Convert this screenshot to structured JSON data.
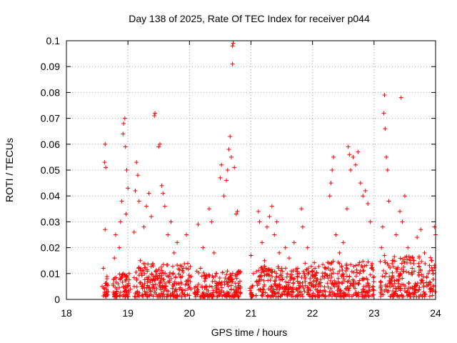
{
  "chart_data": {
    "type": "scatter",
    "title": "Day 138 of 2025, Rate Of TEC Index for receiver p044",
    "xlabel": "GPS time / hours",
    "ylabel": "ROTI / TECUs",
    "xlim": [
      18,
      24
    ],
    "ylim": [
      0,
      0.1
    ],
    "xticks": [
      18,
      19,
      20,
      21,
      22,
      23,
      24
    ],
    "yticks": [
      0,
      0.01,
      0.02,
      0.03,
      0.04,
      0.05,
      0.06,
      0.07,
      0.08,
      0.09,
      0.1
    ],
    "grid": true,
    "marker": "+",
    "color": "#ff0000",
    "series": [
      {
        "name": "ROTI",
        "points": [
          [
            18.58,
            0.005
          ],
          [
            18.6,
            0.012
          ],
          [
            18.62,
            0.053
          ],
          [
            18.63,
            0.06
          ],
          [
            18.64,
            0.051
          ],
          [
            18.63,
            0.027
          ],
          [
            18.65,
            0.004
          ],
          [
            18.66,
            0.008
          ],
          [
            18.68,
            0.003
          ],
          [
            18.78,
            0.016
          ],
          [
            18.8,
            0.025
          ],
          [
            18.82,
            0.003
          ],
          [
            18.84,
            0.006
          ],
          [
            18.86,
            0.02
          ],
          [
            18.88,
            0.03
          ],
          [
            18.9,
            0.038
          ],
          [
            18.92,
            0.064
          ],
          [
            18.93,
            0.068
          ],
          [
            18.95,
            0.07
          ],
          [
            18.96,
            0.059
          ],
          [
            18.97,
            0.033
          ],
          [
            18.98,
            0.05
          ],
          [
            19.0,
            0.043
          ],
          [
            19.02,
            0.01
          ],
          [
            19.04,
            0.004
          ],
          [
            19.0,
            0.002
          ],
          [
            19.1,
            0.026
          ],
          [
            19.12,
            0.042
          ],
          [
            19.14,
            0.053
          ],
          [
            19.16,
            0.048
          ],
          [
            19.18,
            0.038
          ],
          [
            19.2,
            0.015
          ],
          [
            19.22,
            0.01
          ],
          [
            19.24,
            0.005
          ],
          [
            19.26,
            0.028
          ],
          [
            19.3,
            0.036
          ],
          [
            19.34,
            0.041
          ],
          [
            19.38,
            0.032
          ],
          [
            19.41,
            0.013
          ],
          [
            19.43,
            0.071
          ],
          [
            19.44,
            0.072
          ],
          [
            19.5,
            0.059
          ],
          [
            19.52,
            0.06
          ],
          [
            19.55,
            0.044
          ],
          [
            19.57,
            0.041
          ],
          [
            19.6,
            0.036
          ],
          [
            19.65,
            0.025
          ],
          [
            19.7,
            0.03
          ],
          [
            19.75,
            0.018
          ],
          [
            19.8,
            0.022
          ],
          [
            19.85,
            0.009
          ],
          [
            19.9,
            0.012
          ],
          [
            19.95,
            0.025
          ],
          [
            19.98,
            0.006
          ],
          [
            20.1,
            0.005
          ],
          [
            20.14,
            0.029
          ],
          [
            20.18,
            0.012
          ],
          [
            20.22,
            0.02
          ],
          [
            20.26,
            0.008
          ],
          [
            20.32,
            0.035
          ],
          [
            20.36,
            0.03
          ],
          [
            20.4,
            0.018
          ],
          [
            20.44,
            0.01
          ],
          [
            20.5,
            0.047
          ],
          [
            20.52,
            0.052
          ],
          [
            20.56,
            0.04
          ],
          [
            20.6,
            0.046
          ],
          [
            20.62,
            0.05
          ],
          [
            20.64,
            0.058
          ],
          [
            20.66,
            0.063
          ],
          [
            20.68,
            0.055
          ],
          [
            20.7,
            0.091
          ],
          [
            20.7,
            0.098
          ],
          [
            20.71,
            0.099
          ],
          [
            20.73,
            0.051
          ],
          [
            20.76,
            0.033
          ],
          [
            20.78,
            0.034
          ],
          [
            20.8,
            0.004
          ],
          [
            20.82,
            0.007
          ],
          [
            21.0,
            0.017
          ],
          [
            21.02,
            0.005
          ],
          [
            21.04,
            0.01
          ],
          [
            21.12,
            0.034
          ],
          [
            21.14,
            0.03
          ],
          [
            21.18,
            0.022
          ],
          [
            21.22,
            0.015
          ],
          [
            21.26,
            0.028
          ],
          [
            21.3,
            0.032
          ],
          [
            21.34,
            0.036
          ],
          [
            21.38,
            0.025
          ],
          [
            21.42,
            0.03
          ],
          [
            21.46,
            0.018
          ],
          [
            21.5,
            0.012
          ],
          [
            21.56,
            0.02
          ],
          [
            21.62,
            0.016
          ],
          [
            21.7,
            0.022
          ],
          [
            21.76,
            0.012
          ],
          [
            21.82,
            0.035
          ],
          [
            21.84,
            0.028
          ],
          [
            21.88,
            0.014
          ],
          [
            21.92,
            0.02
          ],
          [
            21.96,
            0.008
          ],
          [
            22.04,
            0.012
          ],
          [
            22.1,
            0.006
          ],
          [
            22.2,
            0.01
          ],
          [
            22.28,
            0.04
          ],
          [
            22.3,
            0.045
          ],
          [
            22.32,
            0.05
          ],
          [
            22.34,
            0.055
          ],
          [
            22.38,
            0.025
          ],
          [
            22.44,
            0.018
          ],
          [
            22.5,
            0.022
          ],
          [
            22.56,
            0.035
          ],
          [
            22.58,
            0.059
          ],
          [
            22.6,
            0.056
          ],
          [
            22.62,
            0.05
          ],
          [
            22.66,
            0.055
          ],
          [
            22.7,
            0.052
          ],
          [
            22.74,
            0.057
          ],
          [
            22.78,
            0.045
          ],
          [
            22.82,
            0.04
          ],
          [
            22.86,
            0.042
          ],
          [
            22.9,
            0.037
          ],
          [
            22.94,
            0.03
          ],
          [
            22.96,
            0.012
          ],
          [
            22.98,
            0.005
          ],
          [
            23.12,
            0.02
          ],
          [
            23.14,
            0.028
          ],
          [
            23.16,
            0.072
          ],
          [
            23.17,
            0.079
          ],
          [
            23.18,
            0.066
          ],
          [
            23.2,
            0.055
          ],
          [
            23.22,
            0.05
          ],
          [
            23.24,
            0.038
          ],
          [
            23.3,
            0.015
          ],
          [
            23.36,
            0.025
          ],
          [
            23.42,
            0.034
          ],
          [
            23.44,
            0.078
          ],
          [
            23.46,
            0.03
          ],
          [
            23.5,
            0.04
          ],
          [
            23.55,
            0.02
          ],
          [
            23.62,
            0.012
          ],
          [
            23.7,
            0.024
          ],
          [
            23.76,
            0.027
          ],
          [
            23.82,
            0.018
          ],
          [
            23.88,
            0.01
          ],
          [
            23.94,
            0.015
          ],
          [
            23.98,
            0.028
          ],
          [
            24.0,
            0.025
          ]
        ]
      }
    ],
    "dense_bands": [
      {
        "x0": 18.6,
        "x1": 18.68,
        "y_max": 0.008
      },
      {
        "x0": 18.75,
        "x1": 19.03,
        "y_max": 0.009
      },
      {
        "x0": 19.1,
        "x1": 20.03,
        "y_max": 0.013
      },
      {
        "x0": 20.08,
        "x1": 20.83,
        "y_max": 0.01
      },
      {
        "x0": 20.98,
        "x1": 21.03,
        "y_max": 0.006
      },
      {
        "x0": 21.08,
        "x1": 22.0,
        "y_max": 0.012
      },
      {
        "x0": 22.0,
        "x1": 23.0,
        "y_max": 0.014
      },
      {
        "x0": 23.1,
        "x1": 24.0,
        "y_max": 0.016
      }
    ]
  }
}
